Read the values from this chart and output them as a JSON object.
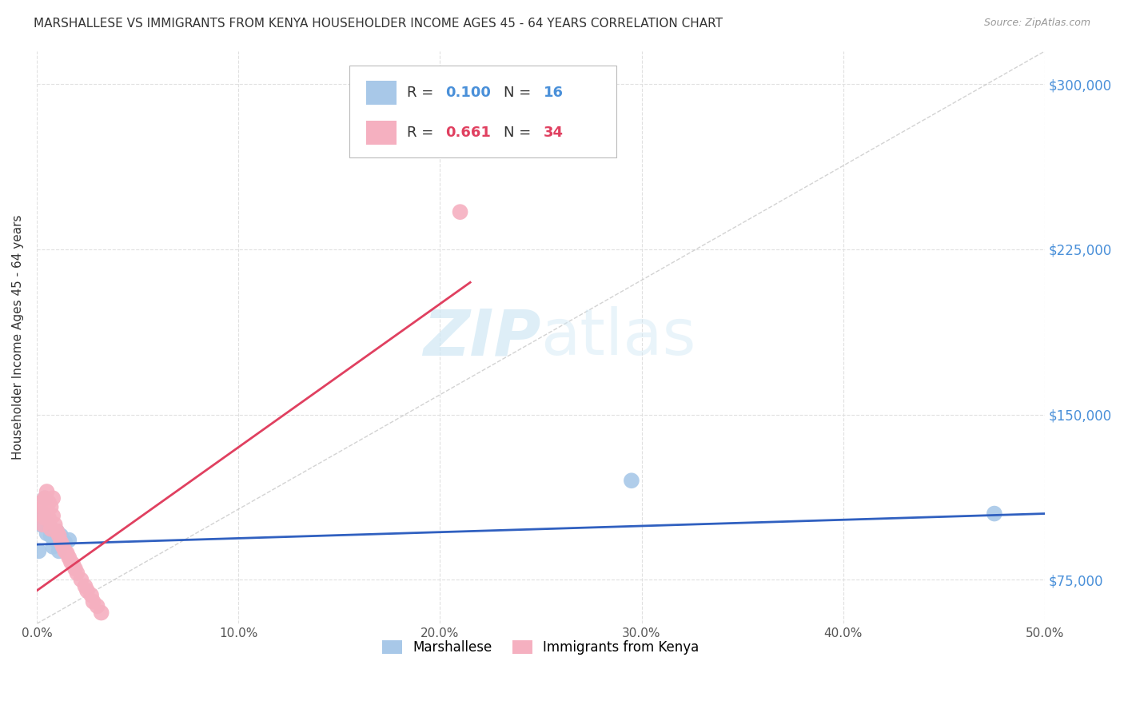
{
  "title": "MARSHALLESE VS IMMIGRANTS FROM KENYA HOUSEHOLDER INCOME AGES 45 - 64 YEARS CORRELATION CHART",
  "source": "Source: ZipAtlas.com",
  "ylabel": "Householder Income Ages 45 - 64 years",
  "xlim": [
    0.0,
    0.5
  ],
  "ylim": [
    55000,
    315000
  ],
  "xtick_labels": [
    "0.0%",
    "10.0%",
    "20.0%",
    "30.0%",
    "40.0%",
    "50.0%"
  ],
  "xtick_vals": [
    0.0,
    0.1,
    0.2,
    0.3,
    0.4,
    0.5
  ],
  "ytick_labels": [
    "$75,000",
    "$150,000",
    "$225,000",
    "$300,000"
  ],
  "ytick_vals": [
    75000,
    150000,
    225000,
    300000
  ],
  "blue_color": "#a8c8e8",
  "pink_color": "#f5b0c0",
  "blue_line_color": "#3060c0",
  "pink_line_color": "#e04060",
  "diag_line_color": "#c8c8c8",
  "marshallese_x": [
    0.001,
    0.002,
    0.003,
    0.004,
    0.005,
    0.006,
    0.007,
    0.008,
    0.009,
    0.01,
    0.011,
    0.012,
    0.014,
    0.016,
    0.295,
    0.475
  ],
  "marshallese_y": [
    88000,
    100000,
    105000,
    112000,
    96000,
    100000,
    95000,
    90000,
    93000,
    97000,
    88000,
    95000,
    92000,
    93000,
    120000,
    105000
  ],
  "kenya_x": [
    0.001,
    0.002,
    0.003,
    0.003,
    0.004,
    0.004,
    0.005,
    0.005,
    0.006,
    0.006,
    0.007,
    0.007,
    0.008,
    0.008,
    0.009,
    0.01,
    0.011,
    0.012,
    0.013,
    0.014,
    0.015,
    0.016,
    0.017,
    0.018,
    0.019,
    0.02,
    0.022,
    0.024,
    0.025,
    0.027,
    0.028,
    0.03,
    0.032,
    0.21
  ],
  "kenya_y": [
    105000,
    110000,
    108000,
    100000,
    112000,
    103000,
    115000,
    107000,
    110000,
    103000,
    108000,
    98000,
    112000,
    104000,
    100000,
    97000,
    95000,
    92000,
    90000,
    88000,
    87000,
    85000,
    83000,
    82000,
    80000,
    78000,
    75000,
    72000,
    70000,
    68000,
    65000,
    63000,
    60000,
    242000
  ],
  "background_color": "#ffffff",
  "grid_color": "#e0e0e0",
  "watermark_color": "#d0e8f5",
  "blue_r": "0.100",
  "blue_n": "16",
  "pink_r": "0.661",
  "pink_n": "34"
}
